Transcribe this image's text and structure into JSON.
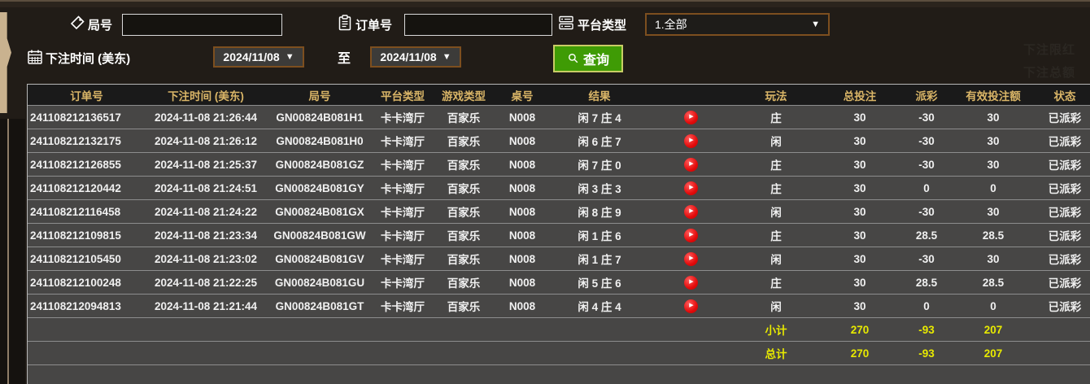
{
  "form": {
    "game_no_label": "局号",
    "game_no_value": "",
    "order_no_label": "订单号",
    "order_no_value": "",
    "platform_label": "平台类型",
    "platform_value": "1.全部",
    "bet_time_label": "下注时间 (美东)",
    "date_from": "2024/11/08",
    "date_to": "2024/11/08",
    "to_label": "至",
    "query_label": "查询",
    "dropdown_arrow": "▼"
  },
  "watermark": {
    "line1": "下注限红",
    "line2": "下注总额"
  },
  "table": {
    "headers": [
      "订单号",
      "下注时间 (美东)",
      "局号",
      "平台类型",
      "游戏类型",
      "桌号",
      "结果",
      "",
      "玩法",
      "总投注",
      "派彩",
      "有效投注额",
      "状态"
    ],
    "play_icon_glyph": "▶",
    "rows": [
      {
        "order_no": "241108212136517",
        "bet_time": "2024-11-08 21:26:44",
        "game_no": "GN00824B081H1",
        "platform": "卡卡湾厅",
        "game_type": "百家乐",
        "table_no": "N008",
        "result": "闲 7 庄 4",
        "play": "庄",
        "total_bet": "30",
        "payout": "-30",
        "valid_bet": "30",
        "status": "已派彩"
      },
      {
        "order_no": "241108212132175",
        "bet_time": "2024-11-08 21:26:12",
        "game_no": "GN00824B081H0",
        "platform": "卡卡湾厅",
        "game_type": "百家乐",
        "table_no": "N008",
        "result": "闲 6 庄 7",
        "play": "闲",
        "total_bet": "30",
        "payout": "-30",
        "valid_bet": "30",
        "status": "已派彩"
      },
      {
        "order_no": "241108212126855",
        "bet_time": "2024-11-08 21:25:37",
        "game_no": "GN00824B081GZ",
        "platform": "卡卡湾厅",
        "game_type": "百家乐",
        "table_no": "N008",
        "result": "闲 7 庄 0",
        "play": "庄",
        "total_bet": "30",
        "payout": "-30",
        "valid_bet": "30",
        "status": "已派彩"
      },
      {
        "order_no": "241108212120442",
        "bet_time": "2024-11-08 21:24:51",
        "game_no": "GN00824B081GY",
        "platform": "卡卡湾厅",
        "game_type": "百家乐",
        "table_no": "N008",
        "result": "闲 3 庄 3",
        "play": "庄",
        "total_bet": "30",
        "payout": "0",
        "valid_bet": "0",
        "status": "已派彩"
      },
      {
        "order_no": "241108212116458",
        "bet_time": "2024-11-08 21:24:22",
        "game_no": "GN00824B081GX",
        "platform": "卡卡湾厅",
        "game_type": "百家乐",
        "table_no": "N008",
        "result": "闲 8 庄 9",
        "play": "闲",
        "total_bet": "30",
        "payout": "-30",
        "valid_bet": "30",
        "status": "已派彩"
      },
      {
        "order_no": "241108212109815",
        "bet_time": "2024-11-08 21:23:34",
        "game_no": "GN00824B081GW",
        "platform": "卡卡湾厅",
        "game_type": "百家乐",
        "table_no": "N008",
        "result": "闲 1 庄 6",
        "play": "庄",
        "total_bet": "30",
        "payout": "28.5",
        "valid_bet": "28.5",
        "status": "已派彩"
      },
      {
        "order_no": "241108212105450",
        "bet_time": "2024-11-08 21:23:02",
        "game_no": "GN00824B081GV",
        "platform": "卡卡湾厅",
        "game_type": "百家乐",
        "table_no": "N008",
        "result": "闲 1 庄 7",
        "play": "闲",
        "total_bet": "30",
        "payout": "-30",
        "valid_bet": "30",
        "status": "已派彩"
      },
      {
        "order_no": "241108212100248",
        "bet_time": "2024-11-08 21:22:25",
        "game_no": "GN00824B081GU",
        "platform": "卡卡湾厅",
        "game_type": "百家乐",
        "table_no": "N008",
        "result": "闲 5 庄 6",
        "play": "庄",
        "total_bet": "30",
        "payout": "28.5",
        "valid_bet": "28.5",
        "status": "已派彩"
      },
      {
        "order_no": "241108212094813",
        "bet_time": "2024-11-08 21:21:44",
        "game_no": "GN00824B081GT",
        "platform": "卡卡湾厅",
        "game_type": "百家乐",
        "table_no": "N008",
        "result": "闲 4 庄 4",
        "play": "闲",
        "total_bet": "30",
        "payout": "0",
        "valid_bet": "0",
        "status": "已派彩"
      }
    ],
    "subtotal": {
      "label": "小计",
      "total_bet": "270",
      "payout": "-93",
      "valid_bet": "207"
    },
    "total": {
      "label": "总计",
      "total_bet": "270",
      "payout": "-93",
      "valid_bet": "207"
    }
  },
  "colors": {
    "header_text": "#d9b567",
    "row_bg": "#474645",
    "payout_negative": "#3ad133",
    "payout_positive": "#a21f2d",
    "status_paid": "#2fd32f",
    "summary_text": "#e8ea00",
    "query_button_bg": "#3f9b05",
    "select_border": "#7d4f1f",
    "left_tab": "#c9b28f"
  }
}
